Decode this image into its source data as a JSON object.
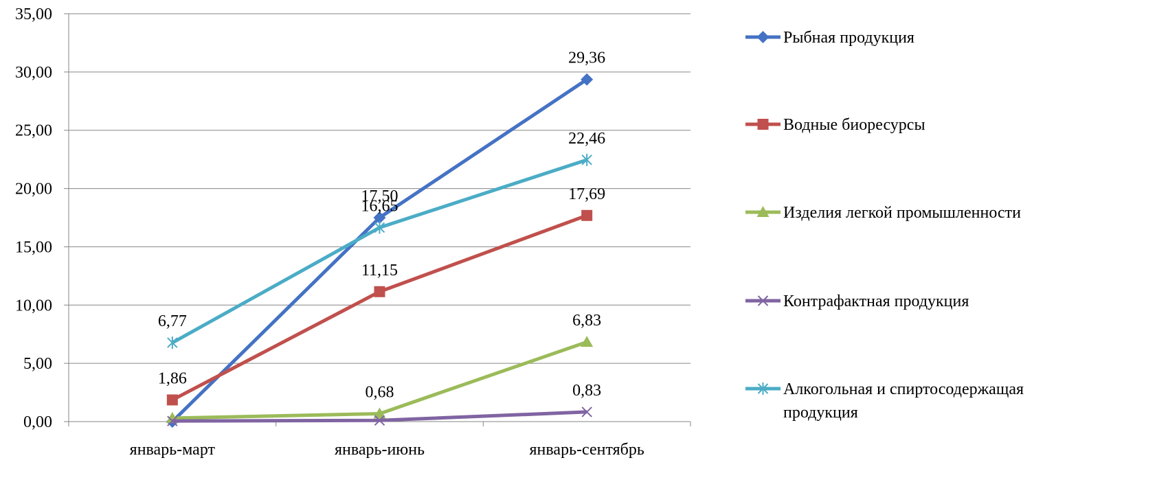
{
  "chart_data": {
    "type": "line",
    "title": "",
    "xlabel": "",
    "ylabel": "",
    "categories": [
      "январь-март",
      "январь-июнь",
      "январь-сентябрь"
    ],
    "y_ticks": [
      "0,00",
      "5,00",
      "10,00",
      "15,00",
      "20,00",
      "25,00",
      "30,00",
      "35,00"
    ],
    "ylim": [
      0,
      35
    ],
    "grid": "horizontal",
    "legend_position": "right",
    "series": [
      {
        "name": "Рыбная продукция",
        "color": "#4472C4",
        "marker": "diamond",
        "values": [
          0.0,
          17.5,
          29.36
        ],
        "labels": [
          "",
          "17,50",
          "29,36"
        ]
      },
      {
        "name": "Водные биоресурсы",
        "color": "#C0504D",
        "marker": "square",
        "values": [
          1.86,
          11.15,
          17.69
        ],
        "labels": [
          "1,86",
          "11,15",
          "17,69"
        ]
      },
      {
        "name": "Изделия легкой промышленности",
        "color": "#9BBB59",
        "marker": "triangle",
        "values": [
          0.3,
          0.68,
          6.83
        ],
        "labels": [
          "",
          "0,68",
          "6,83"
        ]
      },
      {
        "name": "Контрафактная продукция",
        "color": "#8064A2",
        "marker": "x",
        "values": [
          0.05,
          0.1,
          0.83
        ],
        "labels": [
          "",
          "",
          "0,83"
        ]
      },
      {
        "name": "Алкогольная и спиртосодержащая продукция",
        "legend_lines": [
          "Алкогольная и спиртосодержащая",
          "продукция"
        ],
        "color": "#4BACC6",
        "marker": "star",
        "values": [
          6.77,
          16.65,
          22.46
        ],
        "labels": [
          "6,77",
          "16,65",
          "22,46"
        ]
      }
    ]
  }
}
